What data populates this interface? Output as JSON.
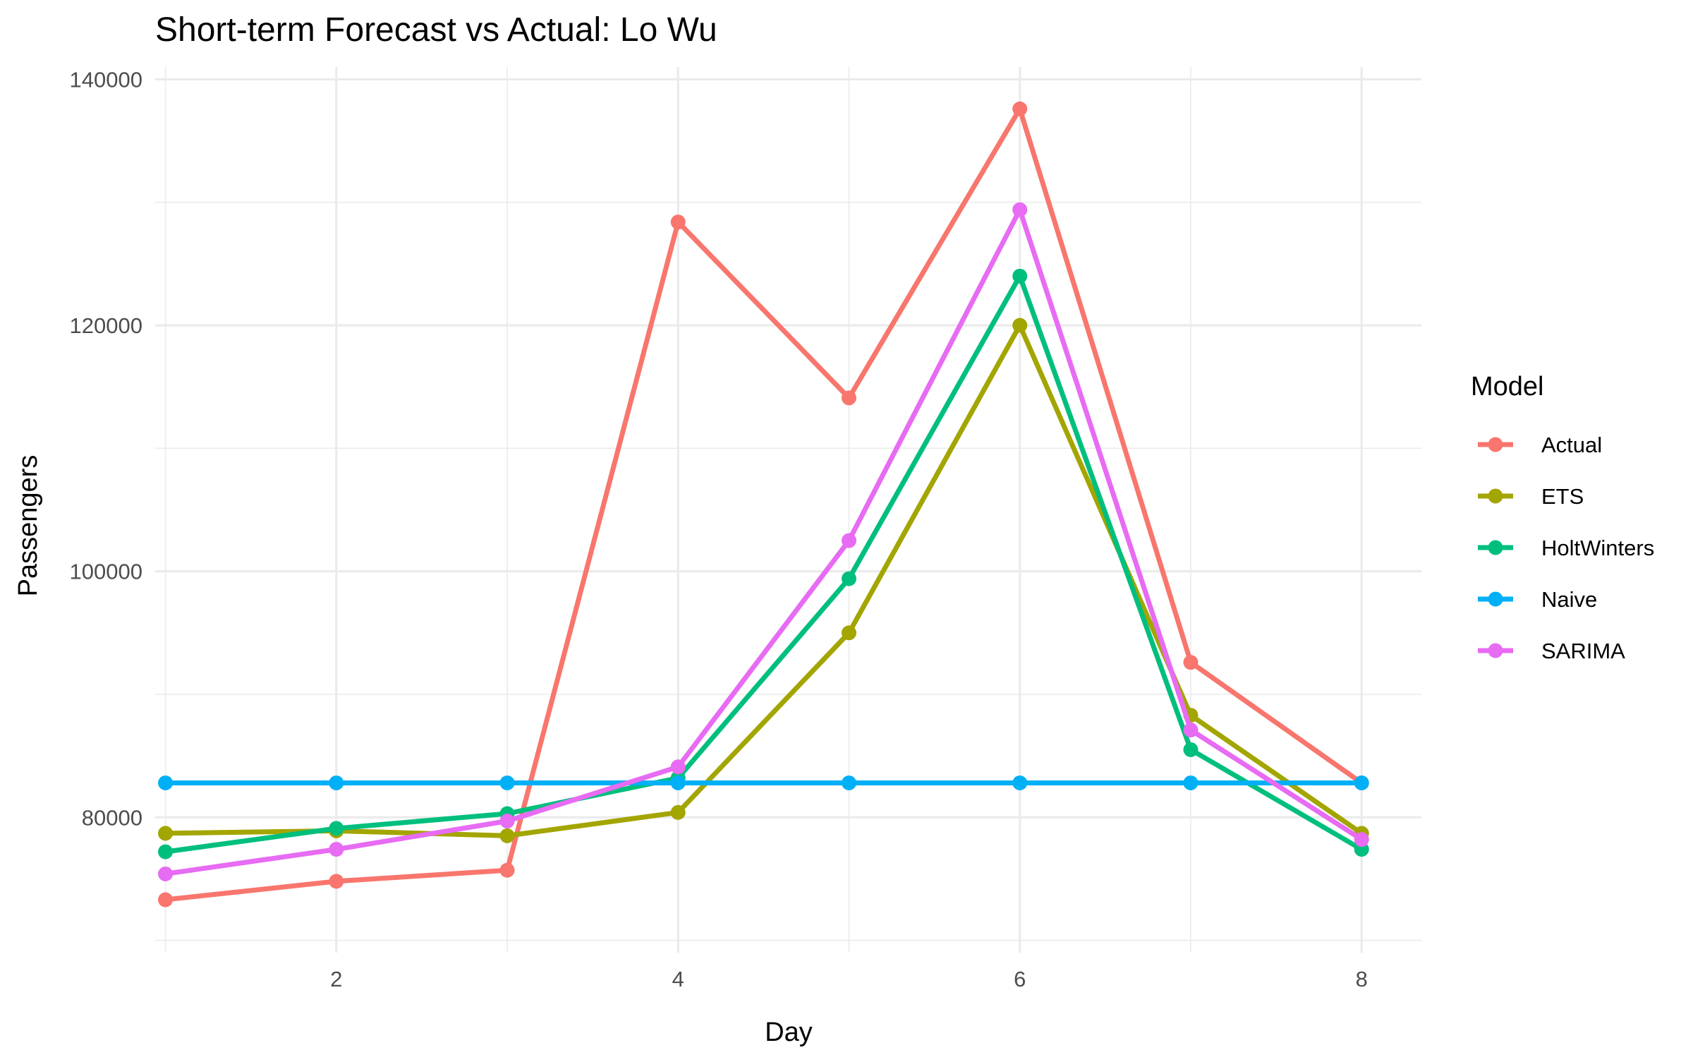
{
  "chart_data": {
    "type": "line",
    "title": "Short-term Forecast vs Actual: Lo Wu",
    "xlabel": "Day",
    "ylabel": "Passengers",
    "xlim": [
      0.94,
      8.35
    ],
    "ylim": [
      69000,
      141000
    ],
    "x_ticks": [
      2,
      4,
      6,
      8
    ],
    "y_ticks": [
      80000,
      100000,
      120000,
      140000
    ],
    "x_minor": [
      1,
      3,
      5,
      7
    ],
    "y_minor": [
      70000,
      90000,
      110000,
      130000
    ],
    "grid": true,
    "legend": {
      "title": "Model",
      "position": "right"
    },
    "x": [
      1,
      2,
      3,
      4,
      5,
      6,
      7,
      8
    ],
    "series": [
      {
        "name": "Actual",
        "color": "#F8766D",
        "values": [
          73300,
          74800,
          75700,
          128400,
          114100,
          137600,
          92600,
          82800
        ]
      },
      {
        "name": "ETS",
        "color": "#A3A500",
        "values": [
          78700,
          78900,
          78500,
          80400,
          95000,
          120000,
          88300,
          78700
        ]
      },
      {
        "name": "HoltWinters",
        "color": "#00BF7D",
        "values": [
          77200,
          79100,
          80300,
          83200,
          99400,
          124000,
          85500,
          77400
        ]
      },
      {
        "name": "Naive",
        "color": "#00B0F6",
        "values": [
          82800,
          82800,
          82800,
          82800,
          82800,
          82800,
          82800,
          82800
        ]
      },
      {
        "name": "SARIMA",
        "color": "#E76BF3",
        "values": [
          75400,
          77400,
          79700,
          84100,
          102500,
          129400,
          87100,
          78200
        ]
      }
    ]
  }
}
